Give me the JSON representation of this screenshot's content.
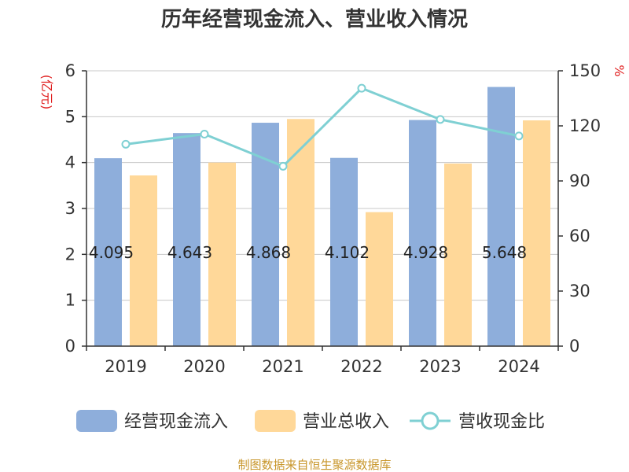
{
  "chart_data": {
    "type": "bar",
    "title": "历年经营现金流入、营业收入情况",
    "categories": [
      "2019",
      "2020",
      "2021",
      "2022",
      "2023",
      "2024"
    ],
    "series": [
      {
        "name": "经营现金流入",
        "type": "bar",
        "axis": "left",
        "color": "#8eaedb",
        "values": [
          4.095,
          4.643,
          4.868,
          4.102,
          4.928,
          5.648
        ]
      },
      {
        "name": "营业总收入",
        "type": "bar",
        "axis": "left",
        "color": "#ffd899",
        "values": [
          3.72,
          4.0,
          4.95,
          2.92,
          3.98,
          4.92
        ]
      },
      {
        "name": "营收现金比",
        "type": "line",
        "axis": "right",
        "color": "#7fd0d3",
        "values": [
          110,
          115.5,
          98,
          140.5,
          123.5,
          114.5
        ]
      }
    ],
    "data_labels": [
      "4.095",
      "4.643",
      "4.868",
      "4.102",
      "4.928",
      "5.648"
    ],
    "y_left": {
      "label": "(亿元)",
      "min": 0,
      "max": 6,
      "ticks": [
        "0",
        "1",
        "2",
        "3",
        "4",
        "5",
        "6"
      ]
    },
    "y_right": {
      "label": "%",
      "min": 0,
      "max": 150,
      "ticks": [
        "0",
        "30",
        "60",
        "90",
        "120",
        "150"
      ]
    },
    "grid": true,
    "legend_position": "bottom",
    "unit_color": "#e02020"
  },
  "source": {
    "text": "制图数据来自恒生聚源数据库",
    "color": "#c8962b"
  }
}
